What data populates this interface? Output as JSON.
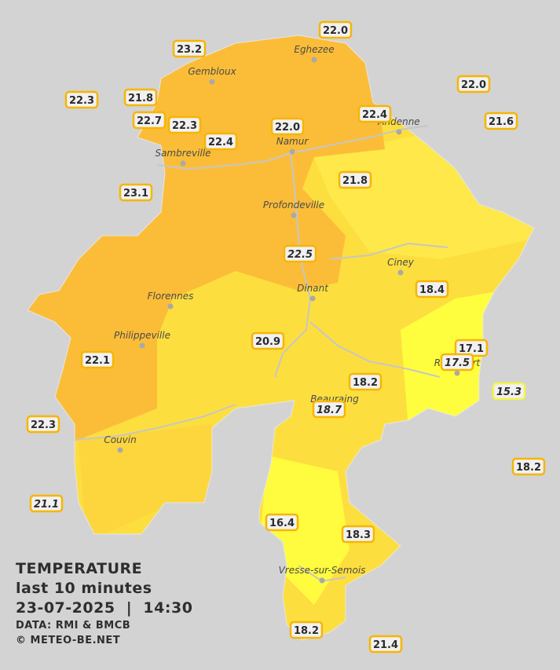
{
  "cities": [
    "Eghezee",
    "Gembloux",
    "Andenne",
    "Namur",
    "Sambreville",
    "Profondeville",
    "Ciney",
    "Dinant",
    "Florennes",
    "Philippeville",
    "Rochefort",
    "Beauraing",
    "Couvin",
    "Vresse-sur-Semois"
  ],
  "stations": [
    "22.0",
    "23.2",
    "22.0",
    "22.3",
    "21.8",
    "22.4",
    "21.6",
    "22.7",
    "22.3",
    "22.0",
    "22.4",
    "21.8",
    "23.1",
    "22.5",
    "18.4",
    "20.9",
    "17.1",
    "17.5",
    "22.1",
    "18.2",
    "15.3",
    "18.7",
    "22.3",
    "18.2",
    "21.1",
    "16.4",
    "18.3",
    "18.2",
    "21.4"
  ],
  "legend": {
    "title": "TEMPERATURE",
    "subtitle": "last 10 minutes",
    "datetime": "23-07-2025  |  14:30",
    "source": "DATA: RMI & BMCB",
    "copyright": "© METEO-BE.NET"
  }
}
